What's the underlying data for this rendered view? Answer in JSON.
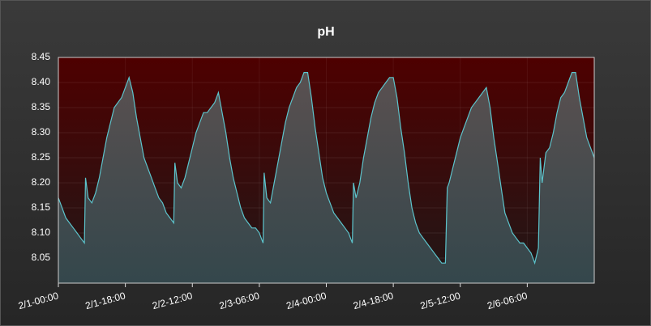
{
  "chart_data": {
    "type": "area",
    "title": "pH",
    "x": [
      0,
      1,
      2,
      3,
      4,
      5,
      6,
      7,
      7.3,
      8,
      9,
      10,
      11,
      12,
      13,
      14,
      15,
      16,
      17,
      18,
      19,
      20,
      21,
      22,
      23,
      24,
      25,
      26,
      27,
      28,
      29,
      30,
      31,
      31.3,
      32,
      33,
      34,
      35,
      36,
      37,
      38,
      39,
      40,
      41,
      42,
      43,
      44,
      45,
      46,
      47,
      48,
      49,
      50,
      51,
      52,
      53,
      54,
      55,
      55.3,
      56,
      57,
      58,
      59,
      60,
      61,
      62,
      63,
      64,
      65,
      66,
      67,
      68,
      69,
      70,
      71,
      72,
      73,
      74,
      75,
      76,
      77,
      78,
      79,
      79.3,
      80,
      81,
      82,
      83,
      84,
      85,
      86,
      87,
      88,
      89,
      90,
      91,
      92,
      93,
      94,
      95,
      96,
      97,
      98,
      99,
      100,
      101,
      102,
      103,
      104,
      104.5,
      105,
      106,
      107,
      108,
      109,
      110,
      111,
      112,
      113,
      114,
      115,
      116,
      117,
      118,
      119,
      120,
      121,
      122,
      123,
      124,
      125,
      126,
      127,
      128,
      129,
      129.5,
      130,
      131,
      132,
      133,
      134,
      135,
      136,
      137,
      138,
      139,
      140,
      141,
      142,
      143,
      144
    ],
    "values": [
      8.17,
      8.15,
      8.13,
      8.12,
      8.11,
      8.1,
      8.09,
      8.08,
      8.21,
      8.17,
      8.16,
      8.18,
      8.21,
      8.25,
      8.29,
      8.32,
      8.35,
      8.36,
      8.37,
      8.39,
      8.41,
      8.38,
      8.33,
      8.29,
      8.25,
      8.23,
      8.21,
      8.19,
      8.17,
      8.16,
      8.14,
      8.13,
      8.12,
      8.24,
      8.2,
      8.19,
      8.21,
      8.24,
      8.27,
      8.3,
      8.32,
      8.34,
      8.34,
      8.35,
      8.36,
      8.38,
      8.34,
      8.3,
      8.25,
      8.21,
      8.18,
      8.15,
      8.13,
      8.12,
      8.11,
      8.11,
      8.1,
      8.08,
      8.22,
      8.17,
      8.16,
      8.2,
      8.24,
      8.28,
      8.32,
      8.35,
      8.37,
      8.39,
      8.4,
      8.42,
      8.42,
      8.37,
      8.31,
      8.26,
      8.21,
      8.18,
      8.16,
      8.14,
      8.13,
      8.12,
      8.11,
      8.1,
      8.08,
      8.2,
      8.17,
      8.2,
      8.25,
      8.29,
      8.33,
      8.36,
      8.38,
      8.39,
      8.4,
      8.41,
      8.41,
      8.37,
      8.31,
      8.26,
      8.2,
      8.15,
      8.12,
      8.1,
      8.09,
      8.08,
      8.07,
      8.06,
      8.05,
      8.04,
      8.04,
      8.19,
      8.2,
      8.23,
      8.26,
      8.29,
      8.31,
      8.33,
      8.35,
      8.36,
      8.37,
      8.38,
      8.39,
      8.35,
      8.29,
      8.24,
      8.19,
      8.14,
      8.12,
      8.1,
      8.09,
      8.08,
      8.08,
      8.07,
      8.06,
      8.04,
      8.07,
      8.25,
      8.2,
      8.26,
      8.27,
      8.3,
      8.34,
      8.37,
      8.38,
      8.4,
      8.42,
      8.42,
      8.37,
      8.33,
      8.29,
      8.27,
      8.25
    ],
    "color": "#5cc4cc",
    "xlim": [
      0,
      144
    ],
    "xticks": [
      {
        "value": 0,
        "label": "2/1-00:00"
      },
      {
        "value": 18,
        "label": "2/1-18:00"
      },
      {
        "value": 36,
        "label": "2/2-12:00"
      },
      {
        "value": 54,
        "label": "2/3-06:00"
      },
      {
        "value": 72,
        "label": "2/4-00:00"
      },
      {
        "value": 90,
        "label": "2/4-18:00"
      },
      {
        "value": 108,
        "label": "2/5-12:00"
      },
      {
        "value": 126,
        "label": "2/6-06:00"
      }
    ],
    "ylim": [
      8.0,
      8.45
    ],
    "yticks": [
      8.05,
      {
        "value": 8.1,
        "label": "8.10"
      },
      8.15,
      {
        "value": 8.2,
        "label": "8.20"
      },
      8.25,
      {
        "value": 8.3,
        "label": "8.30"
      },
      8.35,
      {
        "value": 8.4,
        "label": "8.40"
      },
      8.45
    ],
    "grid": true
  }
}
